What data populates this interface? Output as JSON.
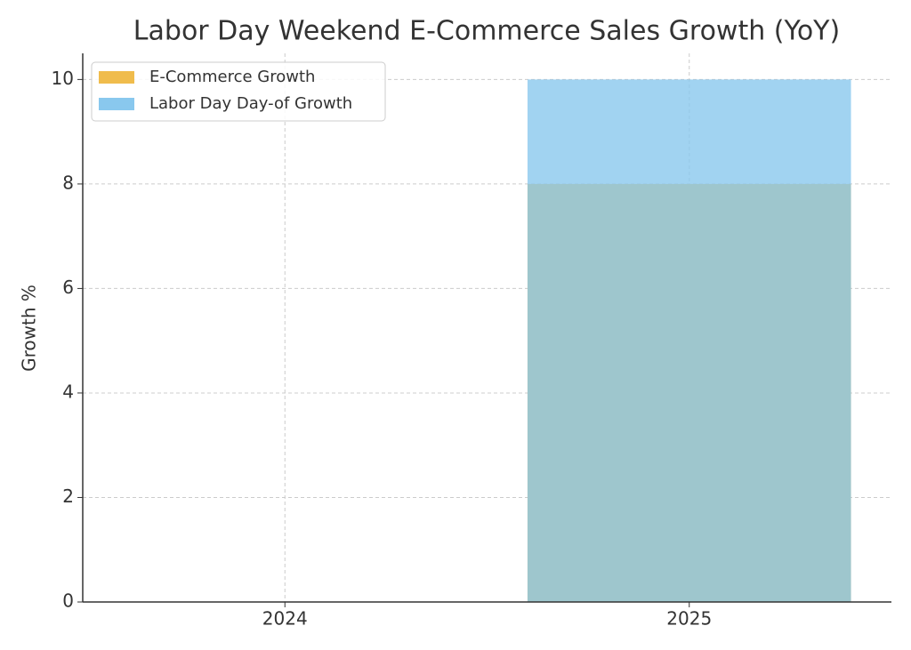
{
  "chart_data": {
    "type": "bar",
    "title": "Labor Day Weekend E-Commerce Sales Growth (YoY)",
    "y_label": "Growth %",
    "categories": [
      "2024",
      "2025"
    ],
    "series": [
      {
        "name": "E-Commerce Growth",
        "color": "#f0bc4c",
        "values": [
          0,
          8
        ]
      },
      {
        "name": "Labor Day Day-of Growth",
        "color": "#89c8ee",
        "values": [
          0,
          10
        ]
      }
    ],
    "ylim": [
      0,
      10.5
    ],
    "yticks": [
      0,
      2,
      4,
      6,
      8,
      10
    ],
    "grid": true,
    "legend": "upper-left"
  }
}
